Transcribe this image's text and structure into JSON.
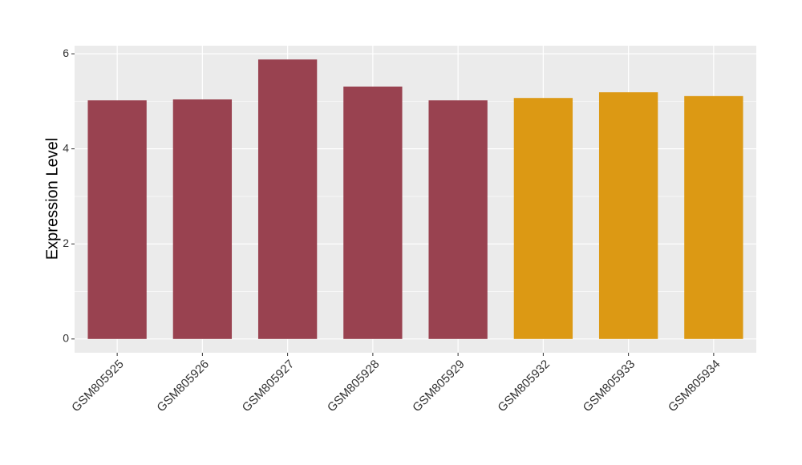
{
  "chart_data": {
    "type": "bar",
    "y_label": "Expression Level",
    "categories": [
      "GSM805925",
      "GSM805926",
      "GSM805927",
      "GSM805928",
      "GSM805929",
      "GSM805932",
      "GSM805933",
      "GSM805934"
    ],
    "values": [
      5.02,
      5.04,
      5.88,
      5.31,
      5.02,
      5.07,
      5.19,
      5.11
    ],
    "colors": [
      "#994250",
      "#994250",
      "#994250",
      "#994250",
      "#994250",
      "#dc9914",
      "#dc9914",
      "#dc9914"
    ],
    "ylim": [
      -0.29,
      6.17
    ],
    "yticks": [
      0,
      2,
      4,
      6
    ],
    "minor_yticks": [
      1,
      3,
      5
    ],
    "grid": true
  }
}
